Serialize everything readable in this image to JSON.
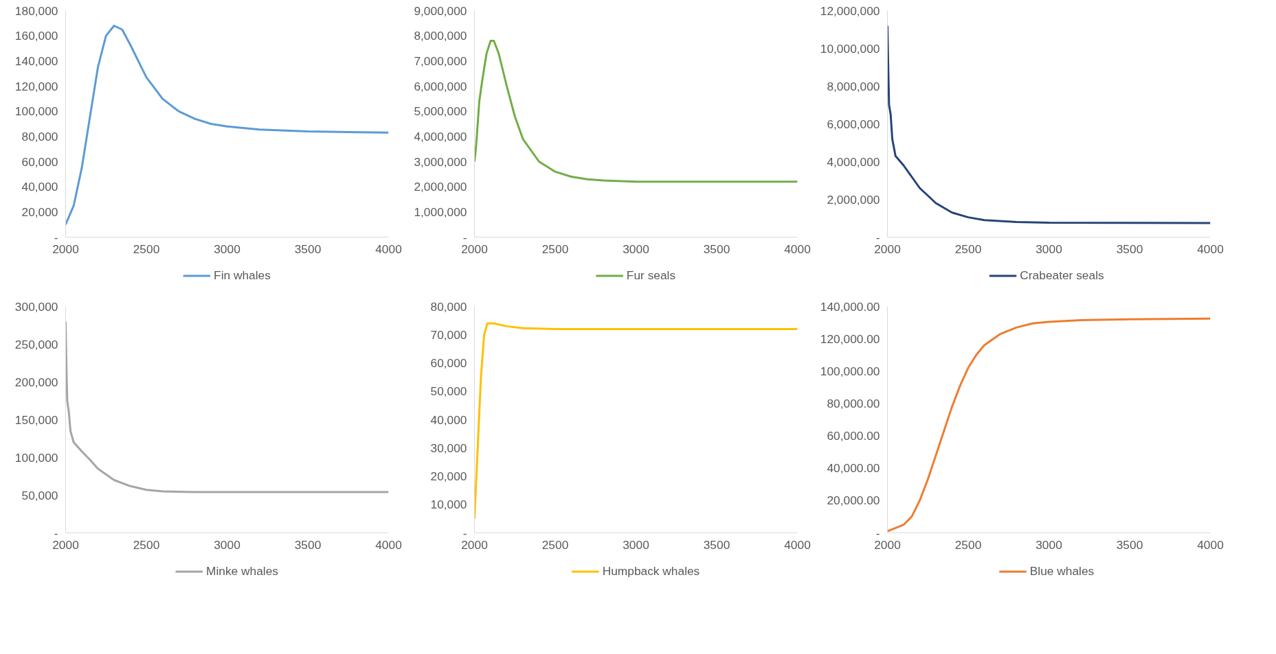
{
  "chart_data": [
    {
      "type": "line",
      "x": [
        2000,
        2050,
        2100,
        2150,
        2200,
        2250,
        2300,
        2350,
        2400,
        2450,
        2500,
        2600,
        2700,
        2800,
        2900,
        3000,
        3200,
        3500,
        4000
      ],
      "series": [
        {
          "name": "Fin whales",
          "color": "#5b9bd5",
          "values": [
            10000,
            25000,
            55000,
            95000,
            135000,
            160000,
            168000,
            165000,
            153000,
            140000,
            127000,
            110000,
            100000,
            94000,
            90000,
            88000,
            85500,
            84000,
            83000
          ]
        }
      ],
      "xlim": [
        2000,
        4000
      ],
      "xticks": [
        2000,
        2500,
        3000,
        3500,
        4000
      ],
      "ylim": [
        0,
        180000
      ],
      "yticks": [
        {
          "value": 0,
          "label": "-"
        },
        {
          "value": 20000,
          "label": "20,000"
        },
        {
          "value": 40000,
          "label": "40,000"
        },
        {
          "value": 60000,
          "label": "60,000"
        },
        {
          "value": 80000,
          "label": "80,000"
        },
        {
          "value": 100000,
          "label": "100,000"
        },
        {
          "value": 120000,
          "label": "120,000"
        },
        {
          "value": 140000,
          "label": "140,000"
        },
        {
          "value": 160000,
          "label": "160,000"
        },
        {
          "value": 180000,
          "label": "180,000"
        }
      ],
      "legend": "bottom",
      "grid": false
    },
    {
      "type": "line",
      "x": [
        2000,
        2010,
        2030,
        2050,
        2075,
        2100,
        2120,
        2150,
        2200,
        2250,
        2300,
        2400,
        2500,
        2600,
        2700,
        2800,
        3000,
        3500,
        4000
      ],
      "series": [
        {
          "name": "Fur seals",
          "color": "#70ad47",
          "values": [
            3000000,
            3600000,
            5400000,
            6300000,
            7300000,
            7800000,
            7800000,
            7300000,
            6000000,
            4800000,
            3900000,
            3000000,
            2600000,
            2400000,
            2300000,
            2250000,
            2200000,
            2200000,
            2200000
          ]
        }
      ],
      "xlim": [
        2000,
        4000
      ],
      "xticks": [
        2000,
        2500,
        3000,
        3500,
        4000
      ],
      "ylim": [
        0,
        9000000
      ],
      "yticks": [
        {
          "value": 0,
          "label": "-"
        },
        {
          "value": 1000000,
          "label": "1,000,000"
        },
        {
          "value": 2000000,
          "label": "2,000,000"
        },
        {
          "value": 3000000,
          "label": "3,000,000"
        },
        {
          "value": 4000000,
          "label": "4,000,000"
        },
        {
          "value": 5000000,
          "label": "5,000,000"
        },
        {
          "value": 6000000,
          "label": "6,000,000"
        },
        {
          "value": 7000000,
          "label": "7,000,000"
        },
        {
          "value": 8000000,
          "label": "8,000,000"
        },
        {
          "value": 9000000,
          "label": "9,000,000"
        }
      ],
      "legend": "bottom",
      "grid": false
    },
    {
      "type": "line",
      "x": [
        2000,
        2005,
        2010,
        2020,
        2030,
        2050,
        2100,
        2150,
        2200,
        2300,
        2400,
        2500,
        2600,
        2800,
        3000,
        4000
      ],
      "series": [
        {
          "name": "Crabeater seals",
          "color": "#264478",
          "values": [
            11200000,
            9000000,
            7000000,
            6500000,
            5200000,
            4300000,
            3800000,
            3200000,
            2600000,
            1800000,
            1300000,
            1050000,
            900000,
            800000,
            760000,
            750000
          ]
        }
      ],
      "xlim": [
        2000,
        4000
      ],
      "xticks": [
        2000,
        2500,
        3000,
        3500,
        4000
      ],
      "ylim": [
        0,
        12000000
      ],
      "yticks": [
        {
          "value": 0,
          "label": "-"
        },
        {
          "value": 2000000,
          "label": "2,000,000"
        },
        {
          "value": 4000000,
          "label": "4,000,000"
        },
        {
          "value": 6000000,
          "label": "6,000,000"
        },
        {
          "value": 8000000,
          "label": "8,000,000"
        },
        {
          "value": 10000000,
          "label": "10,000,000"
        },
        {
          "value": 12000000,
          "label": "12,000,000"
        }
      ],
      "legend": "bottom",
      "grid": false
    },
    {
      "type": "line",
      "x": [
        2000,
        2005,
        2010,
        2020,
        2030,
        2050,
        2100,
        2150,
        2200,
        2300,
        2400,
        2500,
        2600,
        2800,
        4000
      ],
      "series": [
        {
          "name": "Minke whales",
          "color": "#a5a5a5",
          "values": [
            280000,
            220000,
            175000,
            160000,
            135000,
            120000,
            108000,
            97000,
            85000,
            70000,
            62000,
            57000,
            55000,
            54000,
            54000
          ]
        }
      ],
      "xlim": [
        2000,
        4000
      ],
      "xticks": [
        2000,
        2500,
        3000,
        3500,
        4000
      ],
      "ylim": [
        0,
        300000
      ],
      "yticks": [
        {
          "value": 0,
          "label": "-"
        },
        {
          "value": 50000,
          "label": "50,000"
        },
        {
          "value": 100000,
          "label": "100,000"
        },
        {
          "value": 150000,
          "label": "150,000"
        },
        {
          "value": 200000,
          "label": "200,000"
        },
        {
          "value": 250000,
          "label": "250,000"
        },
        {
          "value": 300000,
          "label": "300,000"
        }
      ],
      "legend": "bottom",
      "grid": false
    },
    {
      "type": "line",
      "x": [
        2000,
        2020,
        2040,
        2060,
        2080,
        2120,
        2200,
        2300,
        2500,
        4000
      ],
      "series": [
        {
          "name": "Humpback whales",
          "color": "#ffc000",
          "values": [
            5000,
            30000,
            55000,
            70000,
            74000,
            74000,
            73000,
            72300,
            72000,
            72000
          ]
        }
      ],
      "xlim": [
        2000,
        4000
      ],
      "xticks": [
        2000,
        2500,
        3000,
        3500,
        4000
      ],
      "ylim": [
        0,
        80000
      ],
      "yticks": [
        {
          "value": 0,
          "label": "-"
        },
        {
          "value": 10000,
          "label": "10,000"
        },
        {
          "value": 20000,
          "label": "20,000"
        },
        {
          "value": 30000,
          "label": "30,000"
        },
        {
          "value": 40000,
          "label": "40,000"
        },
        {
          "value": 50000,
          "label": "50,000"
        },
        {
          "value": 60000,
          "label": "60,000"
        },
        {
          "value": 70000,
          "label": "70,000"
        },
        {
          "value": 80000,
          "label": "80,000"
        }
      ],
      "legend": "bottom",
      "grid": false
    },
    {
      "type": "line",
      "x": [
        2000,
        2100,
        2150,
        2200,
        2250,
        2300,
        2350,
        2400,
        2450,
        2500,
        2550,
        2600,
        2700,
        2800,
        2900,
        3000,
        3200,
        3500,
        4000
      ],
      "series": [
        {
          "name": "Blue whales",
          "color": "#ed7d31",
          "values": [
            1000,
            5000,
            10000,
            20000,
            33000,
            48000,
            63000,
            78000,
            91000,
            102000,
            110000,
            116000,
            123000,
            127000,
            129500,
            130500,
            131500,
            132000,
            132500
          ]
        }
      ],
      "xlim": [
        2000,
        4000
      ],
      "xticks": [
        2000,
        2500,
        3000,
        3500,
        4000
      ],
      "ylim": [
        0,
        140000
      ],
      "yticks": [
        {
          "value": 0,
          "label": "-"
        },
        {
          "value": 20000,
          "label": "20,000.00"
        },
        {
          "value": 40000,
          "label": "40,000.00"
        },
        {
          "value": 60000,
          "label": "60,000.00"
        },
        {
          "value": 80000,
          "label": "80,000.00"
        },
        {
          "value": 100000,
          "label": "100,000.00"
        },
        {
          "value": 120000,
          "label": "120,000.00"
        },
        {
          "value": 140000,
          "label": "140,000.00"
        }
      ],
      "legend": "bottom",
      "grid": false
    }
  ]
}
